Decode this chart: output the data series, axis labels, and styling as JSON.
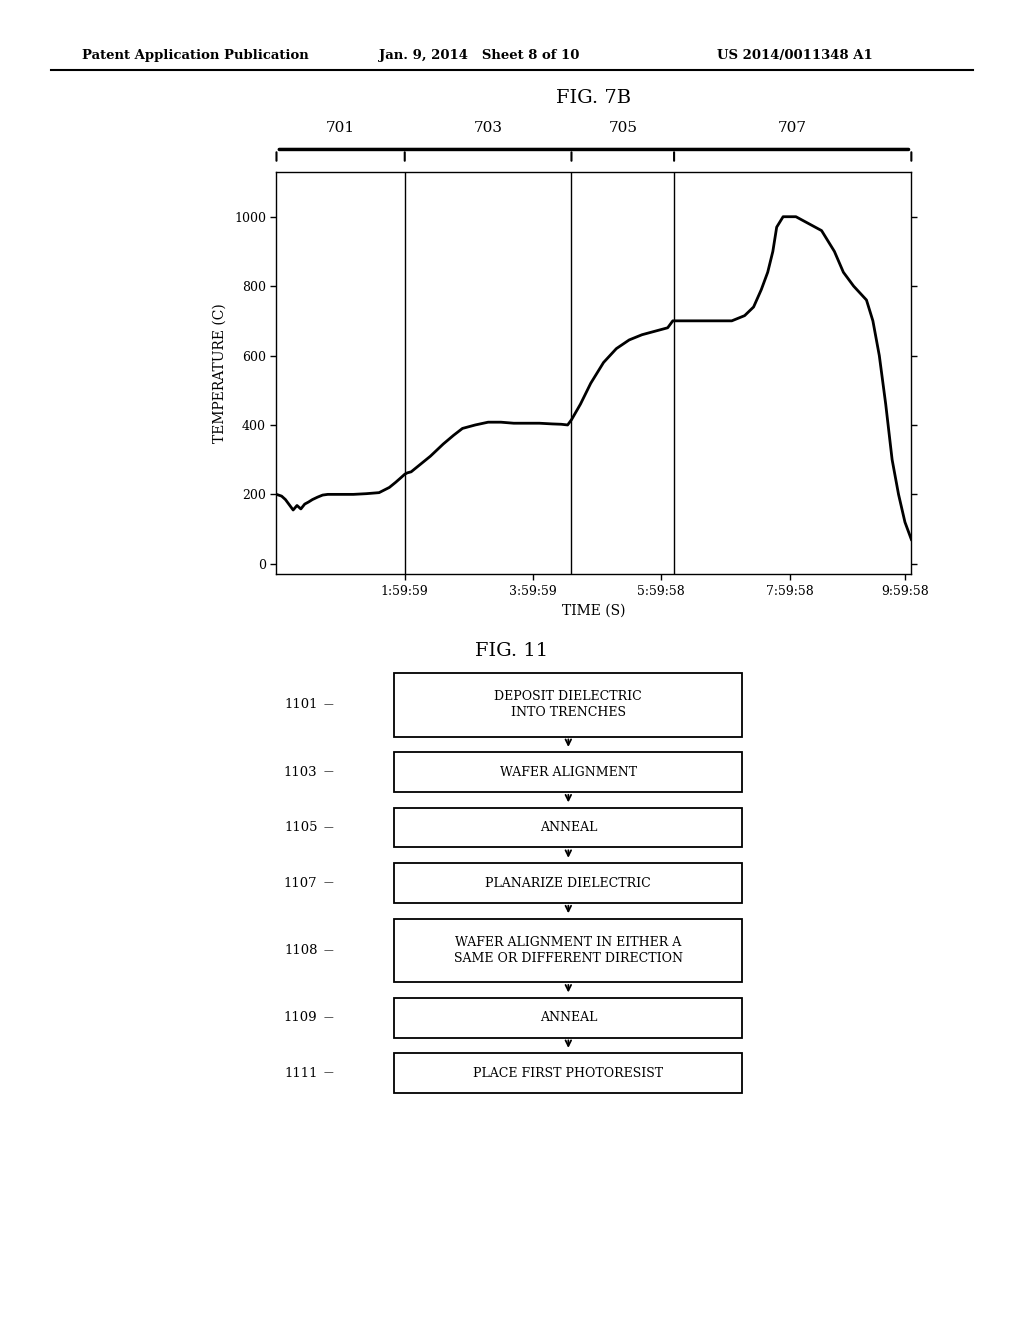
{
  "header_left": "Patent Application Publication",
  "header_mid": "Jan. 9, 2014   Sheet 8 of 10",
  "header_right": "US 2014/0011348 A1",
  "fig7b_title": "FIG. 7B",
  "section_labels": [
    "701",
    "703",
    "705",
    "707"
  ],
  "ylabel": "TEMPERATURE (C)",
  "xlabel": "TIME (S)",
  "yticks": [
    0,
    200,
    400,
    600,
    800,
    1000
  ],
  "xtick_labels": [
    "1:59:59",
    "3:59:59",
    "5:59:58",
    "7:59:58",
    "9:59:58"
  ],
  "fig11_title": "FIG. 11",
  "flowchart_steps": [
    {
      "id": "1101",
      "text": "DEPOSIT DIELECTRIC\nINTO TRENCHES",
      "two_line": true
    },
    {
      "id": "1103",
      "text": "WAFER ALIGNMENT",
      "two_line": false
    },
    {
      "id": "1105",
      "text": "ANNEAL",
      "two_line": false
    },
    {
      "id": "1107",
      "text": "PLANARIZE DIELECTRIC",
      "two_line": false
    },
    {
      "id": "1108",
      "text": "WAFER ALIGNMENT IN EITHER A\nSAME OR DIFFERENT DIRECTION",
      "two_line": true
    },
    {
      "id": "1109",
      "text": "ANNEAL",
      "two_line": false
    },
    {
      "id": "1111",
      "text": "PLACE FIRST PHOTORESIST",
      "two_line": false
    }
  ],
  "bg_color": "#ffffff",
  "line_color": "#000000",
  "text_color": "#000000",
  "section_bounds_x": [
    0.0,
    1.0,
    2.3,
    3.1,
    4.95
  ],
  "xtick_pos": [
    1.0,
    2.0,
    3.0,
    4.0,
    4.9
  ],
  "xlim": [
    0,
    4.95
  ],
  "ylim": [
    -30,
    1130
  ]
}
